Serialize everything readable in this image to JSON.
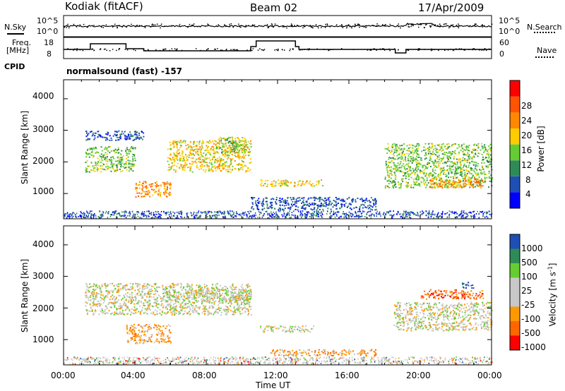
{
  "header": {
    "radar": "Kodiak (fitACF)",
    "beam": "Beam 02",
    "date": "17/Apr/2009"
  },
  "side_labels": {
    "nsky": "N.Sky",
    "nsearch": "N.Search",
    "freq_line1": "Freq.",
    "freq_line2": "[MHz]",
    "nave": "Nave",
    "cpid": "CPID",
    "cpid_value": "normalsound (fast) -157"
  },
  "noise_axis": {
    "left_top": "10^5",
    "left_bottom": "10^0",
    "right_top": "10^5",
    "right_bottom": "10^0"
  },
  "freq_axis": {
    "left_top": "18",
    "left_bottom": "8",
    "right_top": "60",
    "right_bottom": "0"
  },
  "colors": {
    "power": [
      "#0000ff",
      "#1f4fb4",
      "#2e8b57",
      "#66cc33",
      "#ffcc00",
      "#ff8800",
      "#ff5500",
      "#ff0000"
    ],
    "velocity": [
      "#ff0000",
      "#ff6600",
      "#ff9900",
      "#c8c8c8",
      "#66cc33",
      "#2e8b57",
      "#1f4fb4"
    ]
  },
  "power_colorbar": {
    "label": "Power [dB]",
    "ticks": [
      "4",
      "8",
      "12",
      "16",
      "20",
      "24",
      "28"
    ]
  },
  "velocity_colorbar": {
    "label": "Velocity [m s",
    "label_sup": "-1",
    "label_close": "]",
    "ticks": [
      "1000",
      "500",
      "100",
      "25",
      "-25",
      "-100",
      "-500",
      "-1000"
    ]
  },
  "xaxis": {
    "label": "Time UT",
    "ticks": [
      "00:00",
      "04:00",
      "08:00",
      "12:00",
      "16:00",
      "20:00",
      "00:00"
    ]
  },
  "chart_data": [
    {
      "type": "heatmap",
      "panel": "power",
      "xlabel": "Time UT",
      "ylabel": "Slant Range [km]",
      "x_range_hours": [
        0,
        24
      ],
      "ylim": [
        200,
        4600
      ],
      "yticks": [
        "1000",
        "2000",
        "3000",
        "4000"
      ],
      "colorbar": "Power [dB]",
      "features": [
        {
          "t0": 1.2,
          "t1": 4.0,
          "r0": 1700,
          "r1": 2500,
          "level": 3
        },
        {
          "t0": 1.2,
          "t1": 4.5,
          "r0": 2700,
          "r1": 3000,
          "level": 1
        },
        {
          "t0": 4.0,
          "t1": 6.0,
          "r0": 900,
          "r1": 1400,
          "level": 5
        },
        {
          "t0": 5.8,
          "t1": 10.5,
          "r0": 1700,
          "r1": 2700,
          "level": 4
        },
        {
          "t0": 8.5,
          "t1": 10.3,
          "r0": 2300,
          "r1": 2800,
          "level": 3
        },
        {
          "t0": 11.0,
          "t1": 14.5,
          "r0": 1250,
          "r1": 1450,
          "level": 4
        },
        {
          "t0": 10.5,
          "t1": 17.5,
          "r0": 500,
          "r1": 900,
          "level": 1
        },
        {
          "t0": 18.0,
          "t1": 24.0,
          "r0": 1200,
          "r1": 2600,
          "level": 3
        },
        {
          "t0": 20.5,
          "t1": 23.5,
          "r0": 1200,
          "r1": 1500,
          "level": 5
        }
      ]
    },
    {
      "type": "heatmap",
      "panel": "velocity",
      "xlabel": "Time UT",
      "ylabel": "Slant Range [km]",
      "x_range_hours": [
        0,
        24
      ],
      "ylim": [
        200,
        4600
      ],
      "yticks": [
        "1000",
        "2000",
        "3000",
        "4000"
      ],
      "colorbar": "Velocity [m s-1]",
      "features": [
        {
          "t0": 1.2,
          "t1": 10.5,
          "r0": 1800,
          "r1": 2800,
          "level": 3
        },
        {
          "t0": 3.5,
          "t1": 6.0,
          "r0": 900,
          "r1": 1500,
          "level": 2
        },
        {
          "t0": 5.5,
          "t1": 10.5,
          "r0": 2200,
          "r1": 2600,
          "level": 3
        },
        {
          "t0": 11.0,
          "t1": 14.0,
          "r0": 1250,
          "r1": 1450,
          "level": 3
        },
        {
          "t0": 11.5,
          "t1": 17.5,
          "r0": 500,
          "r1": 700,
          "level": 2
        },
        {
          "t0": 20.0,
          "t1": 23.5,
          "r0": 2300,
          "r1": 2600,
          "level": 1
        },
        {
          "t0": 18.5,
          "t1": 24.0,
          "r0": 1300,
          "r1": 2200,
          "level": 3
        },
        {
          "t0": 22.3,
          "t1": 23.0,
          "r0": 2650,
          "r1": 2850,
          "level": 6
        }
      ]
    }
  ]
}
